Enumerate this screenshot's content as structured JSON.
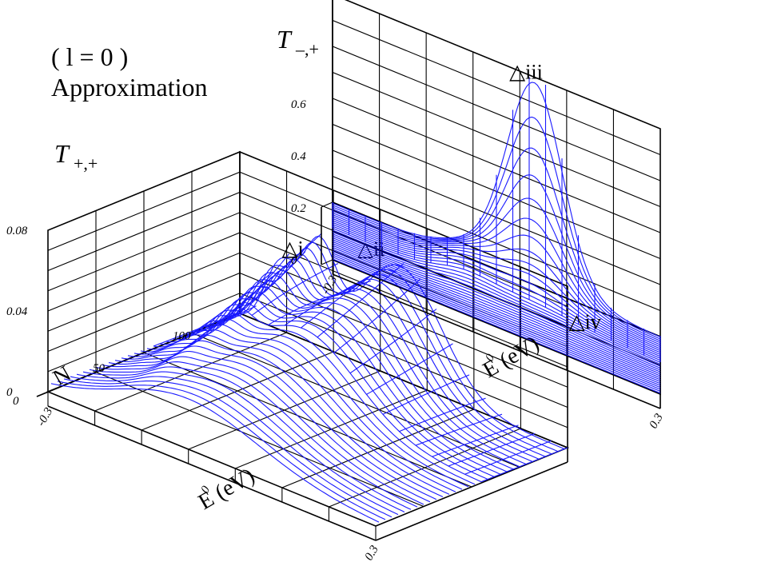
{
  "header": {
    "line1": "( l = 0 )",
    "line2": "Approximation"
  },
  "colors": {
    "curve": "#1a1aff",
    "axes": "#000000",
    "background": "#ffffff"
  },
  "chart_data": [
    {
      "type": "surface3d",
      "title_main": "T",
      "title_sub": "+,+",
      "xlabel": "E (eV)",
      "ylabel": "N",
      "x_ticks": [
        "-0.3",
        "0",
        "0.3"
      ],
      "y_ticks": [
        "0",
        "50",
        "100"
      ],
      "z_ticks": [
        "0",
        "0.04",
        "0.08"
      ],
      "xlim": [
        -0.3,
        0.3
      ],
      "ylim": [
        0,
        120
      ],
      "zlim": [
        0,
        0.08
      ],
      "peaks": [
        {
          "label": "△i",
          "E": -0.15,
          "N": 105,
          "T": 0.047
        },
        {
          "label": "△ii",
          "E": 0.0,
          "N": 105,
          "T": 0.058
        }
      ],
      "curve_color": "#1a1aff"
    },
    {
      "type": "surface3d",
      "title_main": "T",
      "title_sub": "–,+",
      "xlabel": "E (eV)",
      "ylabel": "",
      "x_ticks": [
        "-0.3",
        "0",
        "0.3"
      ],
      "y_ticks": [],
      "z_ticks": [
        "0",
        "0.2",
        "0.4",
        "0.6"
      ],
      "xlim": [
        -0.3,
        0.3
      ],
      "ylim": [
        0,
        120
      ],
      "zlim": [
        0,
        0.8
      ],
      "peaks": [
        {
          "label": "△iii",
          "E": 0.05,
          "N": 118,
          "T": 0.78
        },
        {
          "label": "△iv",
          "E": 0.15,
          "N": 60,
          "T": 0.0
        }
      ],
      "curve_color": "#1a1aff"
    }
  ]
}
